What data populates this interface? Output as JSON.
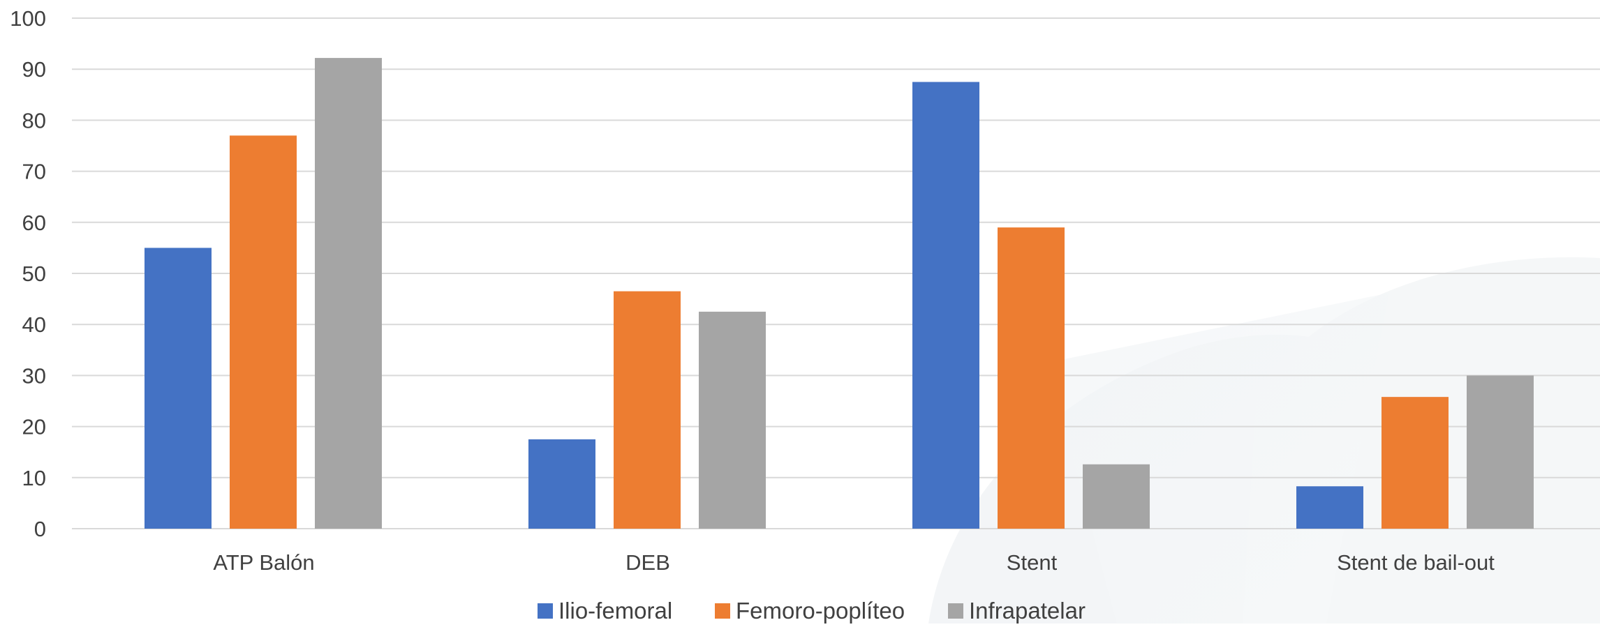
{
  "chart_data": {
    "type": "bar",
    "categories": [
      "ATP Balón",
      "DEB",
      "Stent",
      "Stent de bail-out"
    ],
    "series": [
      {
        "name": "Ilio-femoral",
        "color": "#4472C4",
        "values": [
          55,
          17.5,
          87.5,
          8.3
        ]
      },
      {
        "name": "Femoro-poplíteo",
        "color": "#ED7D31",
        "values": [
          77,
          46.5,
          59,
          25.8
        ]
      },
      {
        "name": "Infrapatelar",
        "color": "#A5A5A5",
        "values": [
          92.2,
          42.5,
          12.6,
          30
        ]
      }
    ],
    "yticks": [
      "0",
      "10",
      "20",
      "30",
      "40",
      "50",
      "60",
      "70",
      "80",
      "90",
      "100"
    ],
    "ylim": [
      0,
      100
    ],
    "grid": true,
    "legend_position": "bottom",
    "title": "",
    "xlabel": "",
    "ylabel": ""
  }
}
